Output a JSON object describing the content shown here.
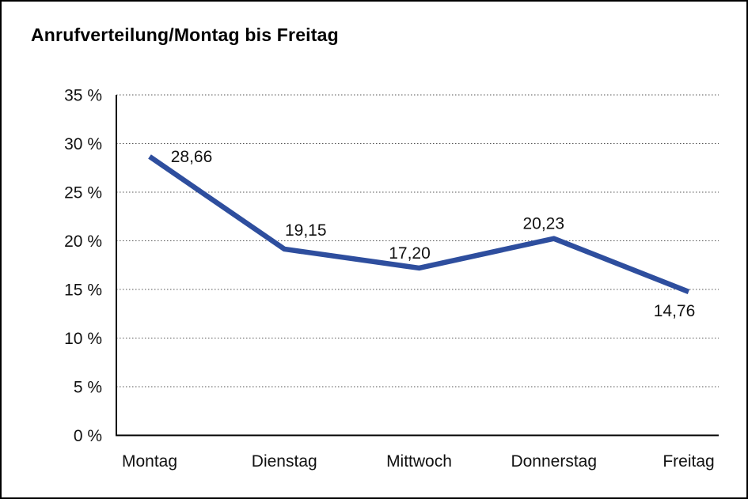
{
  "chart_data": {
    "type": "line",
    "title": "Anrufverteilung/Montag bis Freitag",
    "categories": [
      "Montag",
      "Dienstag",
      "Mittwoch",
      "Donnerstag",
      "Freitag"
    ],
    "series": [
      {
        "name": "Anrufverteilung",
        "values": [
          28.66,
          19.15,
          17.2,
          20.23,
          14.76
        ],
        "value_labels": [
          "28,66",
          "19,15",
          "17,20",
          "20,23",
          "14,76"
        ]
      }
    ],
    "xlabel": "",
    "ylabel": "",
    "ylim": [
      0,
      35
    ],
    "y_tick_step": 5,
    "y_tick_labels": [
      "0 %",
      "5 %",
      "10 %",
      "15 %",
      "20 %",
      "25 %",
      "30 %",
      "35 %"
    ],
    "grid": "dotted horizontal gridlines",
    "legend": "none",
    "colors": {
      "line": "#2E4E9E",
      "axis": "#000000",
      "gridline": "#555555",
      "text": "#111111",
      "background": "#FFFFFF",
      "frame_border": "#000000"
    }
  }
}
